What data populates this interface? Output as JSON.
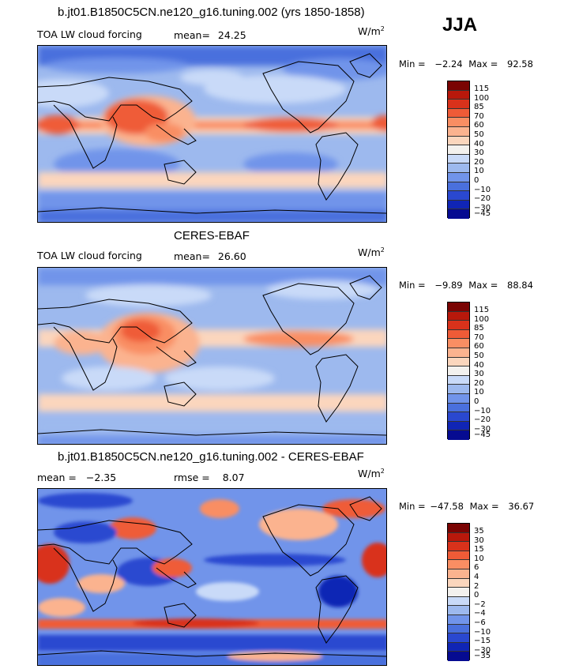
{
  "season": "JJA",
  "units_base": "W/m",
  "units_exp": "2",
  "palette_abs": [
    "#7a0403",
    "#b8180b",
    "#d9321b",
    "#ef5b37",
    "#f98e63",
    "#fbb38f",
    "#fbd6bd",
    "#f3f1ee",
    "#c9daf8",
    "#9db9ee",
    "#7194ea",
    "#4a70dd",
    "#2a48d0",
    "#1025b5",
    "#060b91"
  ],
  "palette_diff": [
    "#7a0403",
    "#b8180b",
    "#d9321b",
    "#ef5b37",
    "#f98e63",
    "#fbb38f",
    "#fbd6bd",
    "#f3f1ee",
    "#c9daf8",
    "#9db9ee",
    "#7194ea",
    "#4a70dd",
    "#2a48d0",
    "#1025b5",
    "#060b91"
  ],
  "panels": [
    {
      "title": "b.jt01.B1850C5CN.ne120_g16.tuning.002 (yrs 1850-1858)",
      "left_label": "TOA LW cloud forcing",
      "stat_label": "mean=",
      "stat_value": "24.25",
      "min_label": "Min =",
      "min_value": "−2.24",
      "max_label": "Max =",
      "max_value": "92.58",
      "levels": [
        "115",
        "100",
        "85",
        "70",
        "60",
        "50",
        "40",
        "30",
        "20",
        "10",
        "0",
        "−10",
        "−20",
        "−30",
        "−45"
      ]
    },
    {
      "title": "CERES-EBAF",
      "left_label": "TOA LW cloud forcing",
      "stat_label": "mean=",
      "stat_value": "26.60",
      "min_label": "Min =",
      "min_value": "−9.89",
      "max_label": "Max =",
      "max_value": "88.84",
      "levels": [
        "115",
        "100",
        "85",
        "70",
        "60",
        "50",
        "40",
        "30",
        "20",
        "10",
        "0",
        "−10",
        "−20",
        "−30",
        "−45"
      ]
    },
    {
      "title": "b.jt01.B1850C5CN.ne120_g16.tuning.002 - CERES-EBAF",
      "mean_label": "mean =",
      "mean_value": "−2.35",
      "rmse_label": "rmse =",
      "rmse_value": "8.07",
      "min_label": "Min =",
      "min_value": "−47.58",
      "max_label": "Max =",
      "max_value": "36.67",
      "levels": [
        "35",
        "30",
        "15",
        "10",
        "6",
        "4",
        "2",
        "0",
        "−2",
        "−4",
        "−6",
        "−10",
        "−15",
        "−30",
        "−35"
      ]
    }
  ]
}
